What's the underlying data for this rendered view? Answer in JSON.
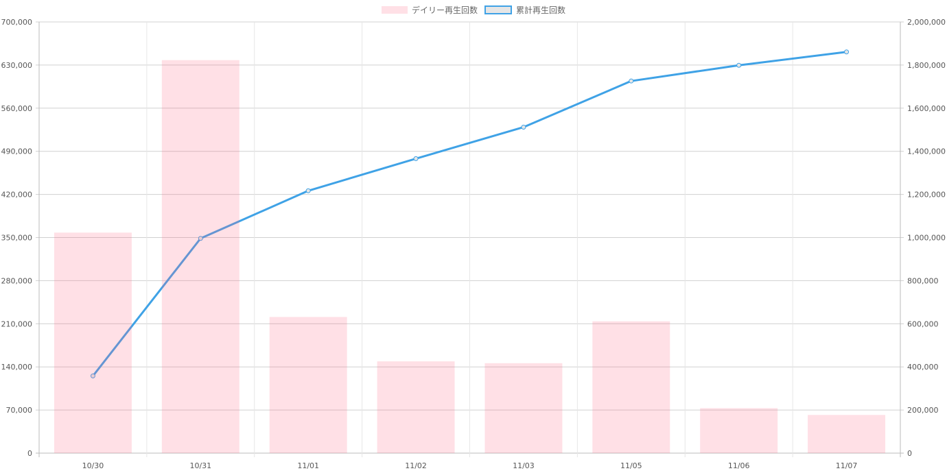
{
  "chart_data": {
    "type": "bar+line",
    "categories": [
      "10/30",
      "10/31",
      "11/01",
      "11/02",
      "11/03",
      "11/05",
      "11/06",
      "11/07"
    ],
    "series": [
      {
        "name": "デイリー再生回数",
        "type": "bar",
        "axis": "left",
        "color": "#ffdfe5",
        "values": [
          358000,
          638000,
          221000,
          149000,
          146000,
          214000,
          73000,
          62000
        ]
      },
      {
        "name": "累計再生回数",
        "type": "line",
        "axis": "right",
        "color": "#3fa2e6",
        "values": [
          358000,
          996000,
          1217000,
          1366000,
          1512000,
          1726000,
          1799000,
          1861000
        ]
      }
    ],
    "y_left": {
      "range": [
        0,
        700000
      ],
      "ticks": [
        "0",
        "70,000",
        "140,000",
        "210,000",
        "280,000",
        "350,000",
        "420,000",
        "490,000",
        "560,000",
        "630,000",
        "700,000"
      ]
    },
    "y_right": {
      "range": [
        0,
        2000000
      ],
      "ticks": [
        "0",
        "200,000",
        "400,000",
        "600,000",
        "800,000",
        "1,000,000",
        "1,200,000",
        "1,400,000",
        "1,600,000",
        "1,800,000",
        "2,000,000"
      ]
    },
    "grid": true,
    "legend_position": "top"
  }
}
